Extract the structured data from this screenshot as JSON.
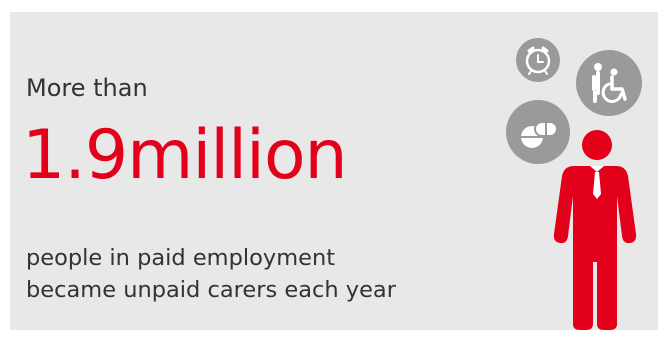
{
  "headline": {
    "intro": "More than",
    "figure": "1.9million",
    "description_line1": "people in paid employment",
    "description_line2": "became unpaid carers each year"
  },
  "colors": {
    "accent": "#e3001b",
    "text": "#333333",
    "panel": "#e8e8e8",
    "icon": "#9a9a9a"
  },
  "icons": [
    "alarm-clock-icon",
    "wheelchair-carer-icon",
    "pills-icon",
    "person-with-tie-icon"
  ]
}
